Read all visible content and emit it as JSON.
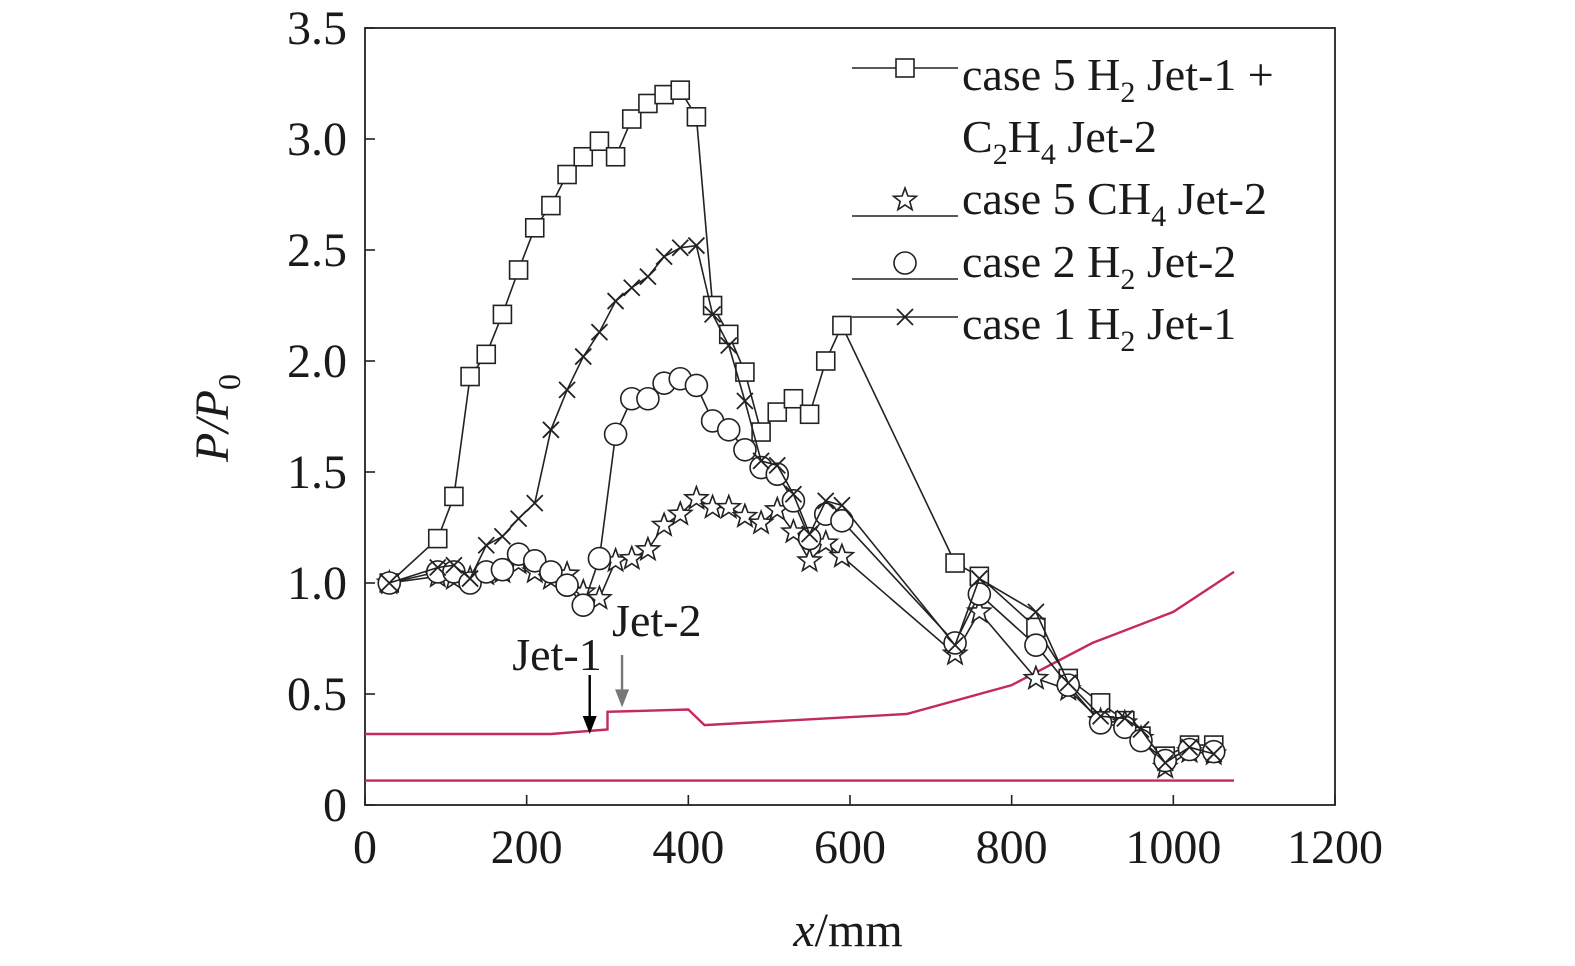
{
  "chart_data": {
    "type": "line",
    "xlabel_italic": "x",
    "xlabel_rest": "/mm",
    "ylabel_p1": "P",
    "ylabel_p2": "/P",
    "ylabel_sub": "0",
    "xlim": [
      0,
      1200
    ],
    "ylim": [
      0,
      3.5
    ],
    "x_ticks": [
      0,
      200,
      400,
      600,
      800,
      1000,
      1200
    ],
    "x_tick_labels": [
      "0",
      "200",
      "400",
      "600",
      "800",
      "1000",
      "1200"
    ],
    "y_ticks": [
      0,
      0.5,
      1.0,
      1.5,
      2.0,
      2.5,
      3.0,
      3.5
    ],
    "y_tick_labels": [
      "0",
      "0.5",
      "1.0",
      "1.5",
      "2.0",
      "2.5",
      "3.0",
      "3.5"
    ],
    "legend_position": "top-right",
    "series": [
      {
        "id": "case5-h2-c2h4",
        "marker": "square",
        "legend_lines": [
          [
            "case 5 H",
            {
              "sub": "2"
            },
            " Jet-1 +"
          ],
          [
            "C",
            {
              "sub": "2"
            },
            "H",
            {
              "sub": "4"
            },
            " Jet-2"
          ]
        ],
        "points": [
          [
            30,
            1.0
          ],
          [
            90,
            1.2
          ],
          [
            110,
            1.39
          ],
          [
            130,
            1.93
          ],
          [
            150,
            2.03
          ],
          [
            170,
            2.21
          ],
          [
            190,
            2.41
          ],
          [
            210,
            2.6
          ],
          [
            230,
            2.7
          ],
          [
            250,
            2.84
          ],
          [
            270,
            2.92
          ],
          [
            290,
            2.99
          ],
          [
            310,
            2.92
          ],
          [
            330,
            3.09
          ],
          [
            350,
            3.16
          ],
          [
            370,
            3.2
          ],
          [
            390,
            3.22
          ],
          [
            410,
            3.1
          ],
          [
            430,
            2.25
          ],
          [
            450,
            2.12
          ],
          [
            470,
            1.95
          ],
          [
            490,
            1.68
          ],
          [
            510,
            1.77
          ],
          [
            530,
            1.83
          ],
          [
            550,
            1.76
          ],
          [
            570,
            2.0
          ],
          [
            590,
            2.16
          ],
          [
            730,
            1.09
          ],
          [
            760,
            1.03
          ],
          [
            830,
            0.8
          ],
          [
            870,
            0.57
          ],
          [
            910,
            0.46
          ],
          [
            940,
            0.38
          ],
          [
            960,
            0.31
          ],
          [
            990,
            0.22
          ],
          [
            1020,
            0.27
          ],
          [
            1050,
            0.27
          ]
        ]
      },
      {
        "id": "case5-ch4",
        "marker": "star",
        "legend_lines": [
          [
            "case 5 CH",
            {
              "sub": "4"
            },
            " Jet-2"
          ]
        ],
        "points": [
          [
            30,
            1.0
          ],
          [
            90,
            1.03
          ],
          [
            110,
            1.02
          ],
          [
            130,
            1.02
          ],
          [
            150,
            1.04
          ],
          [
            170,
            1.05
          ],
          [
            190,
            1.09
          ],
          [
            210,
            1.05
          ],
          [
            230,
            1.02
          ],
          [
            250,
            1.04
          ],
          [
            270,
            0.96
          ],
          [
            290,
            0.93
          ],
          [
            310,
            1.1
          ],
          [
            330,
            1.11
          ],
          [
            350,
            1.15
          ],
          [
            370,
            1.26
          ],
          [
            390,
            1.31
          ],
          [
            410,
            1.38
          ],
          [
            430,
            1.34
          ],
          [
            450,
            1.34
          ],
          [
            470,
            1.3
          ],
          [
            490,
            1.27
          ],
          [
            510,
            1.33
          ],
          [
            530,
            1.23
          ],
          [
            550,
            1.1
          ],
          [
            570,
            1.18
          ],
          [
            590,
            1.12
          ],
          [
            730,
            0.68
          ],
          [
            760,
            0.87
          ],
          [
            830,
            0.57
          ],
          [
            870,
            0.52
          ],
          [
            910,
            0.38
          ],
          [
            940,
            0.37
          ],
          [
            960,
            0.3
          ],
          [
            990,
            0.17
          ],
          [
            1020,
            0.24
          ],
          [
            1050,
            0.23
          ]
        ]
      },
      {
        "id": "case2-h2",
        "marker": "circle",
        "legend_lines": [
          [
            "case 2 H",
            {
              "sub": "2"
            },
            " Jet-2"
          ]
        ],
        "points": [
          [
            30,
            1.0
          ],
          [
            90,
            1.05
          ],
          [
            110,
            1.05
          ],
          [
            130,
            1.0
          ],
          [
            150,
            1.05
          ],
          [
            170,
            1.06
          ],
          [
            190,
            1.13
          ],
          [
            210,
            1.1
          ],
          [
            230,
            1.05
          ],
          [
            250,
            0.99
          ],
          [
            270,
            0.9
          ],
          [
            290,
            1.11
          ],
          [
            310,
            1.67
          ],
          [
            330,
            1.83
          ],
          [
            350,
            1.83
          ],
          [
            370,
            1.9
          ],
          [
            390,
            1.92
          ],
          [
            410,
            1.89
          ],
          [
            430,
            1.73
          ],
          [
            450,
            1.69
          ],
          [
            470,
            1.6
          ],
          [
            490,
            1.52
          ],
          [
            510,
            1.49
          ],
          [
            530,
            1.37
          ],
          [
            550,
            1.2
          ],
          [
            570,
            1.31
          ],
          [
            590,
            1.28
          ],
          [
            730,
            0.73
          ],
          [
            760,
            0.95
          ],
          [
            830,
            0.72
          ],
          [
            870,
            0.54
          ],
          [
            910,
            0.37
          ],
          [
            940,
            0.35
          ],
          [
            960,
            0.29
          ],
          [
            990,
            0.2
          ],
          [
            1020,
            0.25
          ],
          [
            1050,
            0.24
          ]
        ]
      },
      {
        "id": "case1-h2",
        "marker": "x",
        "legend_lines": [
          [
            "case 1 H",
            {
              "sub": "2"
            },
            " Jet-1"
          ]
        ],
        "points": [
          [
            30,
            1.0
          ],
          [
            90,
            1.07
          ],
          [
            110,
            1.08
          ],
          [
            130,
            1.02
          ],
          [
            150,
            1.17
          ],
          [
            170,
            1.21
          ],
          [
            190,
            1.29
          ],
          [
            210,
            1.36
          ],
          [
            230,
            1.69
          ],
          [
            250,
            1.87
          ],
          [
            270,
            2.02
          ],
          [
            290,
            2.13
          ],
          [
            310,
            2.27
          ],
          [
            330,
            2.33
          ],
          [
            350,
            2.38
          ],
          [
            370,
            2.47
          ],
          [
            390,
            2.51
          ],
          [
            410,
            2.52
          ],
          [
            430,
            2.21
          ],
          [
            450,
            2.07
          ],
          [
            470,
            1.82
          ],
          [
            490,
            1.55
          ],
          [
            510,
            1.53
          ],
          [
            530,
            1.4
          ],
          [
            550,
            1.22
          ],
          [
            570,
            1.37
          ],
          [
            590,
            1.35
          ],
          [
            730,
            0.72
          ],
          [
            760,
            1.02
          ],
          [
            830,
            0.87
          ],
          [
            870,
            0.55
          ],
          [
            910,
            0.4
          ],
          [
            940,
            0.39
          ],
          [
            960,
            0.34
          ],
          [
            990,
            0.19
          ],
          [
            1020,
            0.26
          ],
          [
            1050,
            0.23
          ]
        ]
      }
    ],
    "annotations": [
      {
        "text": "Jet-1",
        "x": 278
      },
      {
        "text": "Jet-2",
        "x": 318
      }
    ],
    "geometry_upper": [
      [
        0,
        0.32
      ],
      [
        230,
        0.32
      ],
      [
        300,
        0.34
      ],
      [
        300,
        0.42
      ],
      [
        400,
        0.43
      ],
      [
        420,
        0.36
      ],
      [
        670,
        0.41
      ],
      [
        800,
        0.54
      ],
      [
        900,
        0.73
      ],
      [
        1000,
        0.87
      ],
      [
        1075,
        1.05
      ]
    ],
    "geometry_lower": [
      [
        0,
        0.11
      ],
      [
        1075,
        0.11
      ]
    ],
    "colors": {
      "series": "#222222",
      "geometry": "#c42a5a",
      "jet1_arrow": "#000000",
      "jet2_arrow": "#777777",
      "axes": "#222222"
    }
  }
}
